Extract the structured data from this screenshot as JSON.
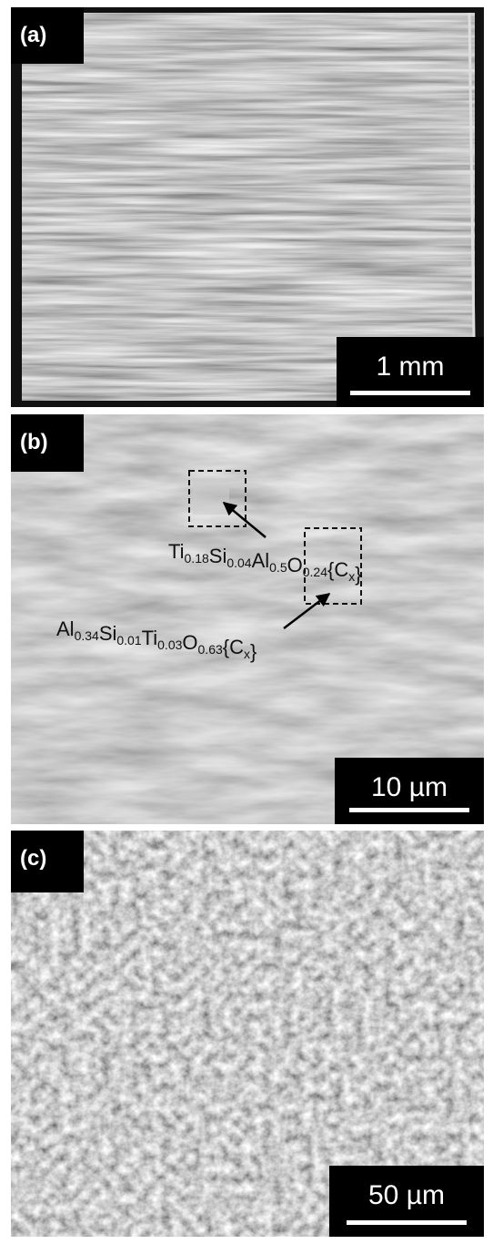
{
  "panels": [
    {
      "label": "(a)",
      "scale_bar": "1 mm"
    },
    {
      "label": "(b)",
      "scale_bar": "10 µm",
      "annotations": [
        {
          "parts": [
            [
              "Ti",
              "0.18"
            ],
            [
              "Si",
              "0.04"
            ],
            [
              "Al",
              "0.5"
            ],
            [
              "O",
              "0.24"
            ],
            [
              "{C",
              "x"
            ]
          ],
          "suffix": "}"
        },
        {
          "parts": [
            [
              "Al",
              "0.34"
            ],
            [
              "Si",
              "0.01"
            ],
            [
              "Ti",
              "0.03"
            ],
            [
              "O",
              "0.63"
            ],
            [
              "{C",
              "x"
            ]
          ],
          "suffix": "}"
        }
      ]
    },
    {
      "label": "(c)",
      "scale_bar": "50 µm"
    }
  ]
}
